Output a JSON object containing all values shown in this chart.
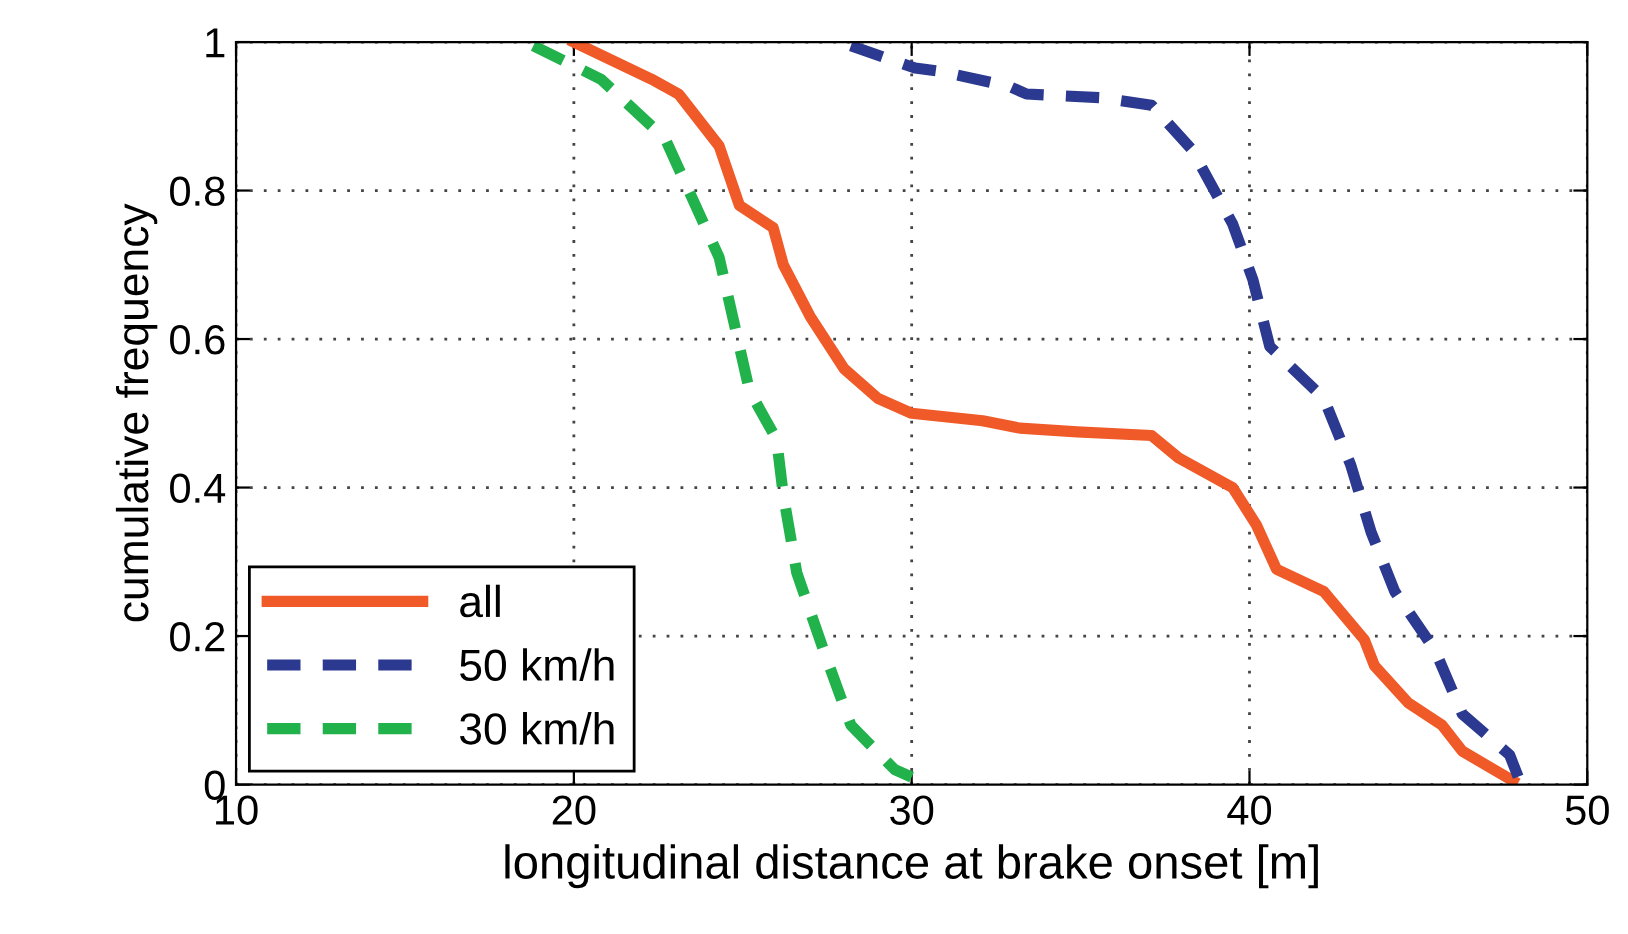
{
  "chart_data": {
    "type": "line",
    "xlabel": "longitudinal distance at brake onset [m]",
    "ylabel": "cumulative frequency",
    "xlim": [
      10,
      50
    ],
    "xticks": [
      10,
      20,
      30,
      40,
      50
    ],
    "ylim": [
      0,
      1
    ],
    "yticks": [
      0,
      0.2,
      0.4,
      0.6,
      0.8,
      1
    ],
    "grid": true,
    "legend": "bottom left",
    "marker": "none",
    "series": [
      {
        "name": "all",
        "color": "#f05a28",
        "line_style": "solid",
        "x": [
          20.0,
          22.3,
          23.1,
          24.3,
          24.9,
          25.9,
          26.2,
          27.0,
          28.0,
          29.0,
          30.0,
          32.1,
          33.2,
          34.9,
          37.1,
          37.9,
          39.5,
          40.2,
          40.8,
          42.2,
          43.4,
          43.7,
          44.7,
          45.7,
          46.3,
          47.8
        ],
        "values": [
          1.0,
          0.95,
          0.93,
          0.86,
          0.78,
          0.75,
          0.7,
          0.63,
          0.56,
          0.52,
          0.5,
          0.49,
          0.48,
          0.475,
          0.47,
          0.44,
          0.4,
          0.35,
          0.29,
          0.26,
          0.195,
          0.16,
          0.11,
          0.08,
          0.045,
          0.005
        ]
      },
      {
        "name": "50 km/h",
        "color": "#2b3990",
        "line_style": "dashed",
        "x": [
          28.2,
          30.1,
          30.9,
          32.9,
          33.4,
          35.6,
          37.1,
          38.3,
          39.5,
          40.1,
          40.6,
          42.2,
          43.0,
          43.6,
          44.3,
          45.5,
          46.3,
          47.7,
          48.0
        ],
        "values": [
          0.995,
          0.965,
          0.96,
          0.94,
          0.93,
          0.925,
          0.915,
          0.855,
          0.755,
          0.68,
          0.59,
          0.52,
          0.43,
          0.34,
          0.26,
          0.18,
          0.095,
          0.04,
          0.005
        ]
      },
      {
        "name": "30 km/h",
        "color": "#22b24c",
        "line_style": "dashed",
        "x": [
          18.8,
          20.8,
          22.7,
          23.5,
          24.3,
          24.7,
          25.2,
          26.0,
          26.2,
          26.6,
          27.4,
          28.2,
          29.5,
          30.0
        ],
        "values": [
          0.995,
          0.95,
          0.87,
          0.79,
          0.71,
          0.63,
          0.53,
          0.465,
          0.39,
          0.285,
          0.18,
          0.08,
          0.02,
          0.01
        ]
      }
    ]
  }
}
